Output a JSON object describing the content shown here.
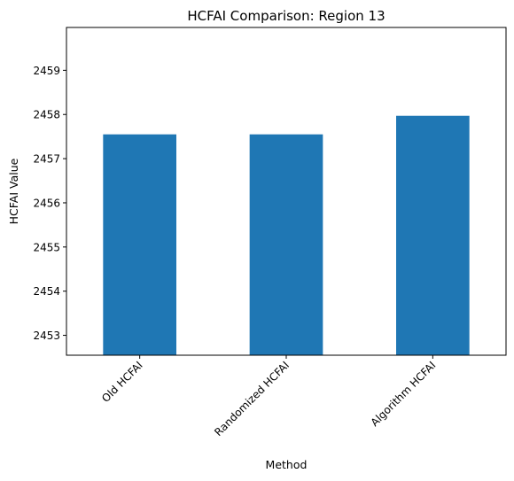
{
  "colors": {
    "bar": "#1f77b4",
    "axis": "#000000",
    "background": "#ffffff"
  },
  "chart_data": {
    "type": "bar",
    "title": "HCFAI Comparison: Region 13",
    "xlabel": "Method",
    "ylabel": "HCFAI Value",
    "categories": [
      "Old HCFAI",
      "Randomized HCFAI",
      "Algorithm HCFAI"
    ],
    "values": [
      2457.55,
      2457.55,
      2457.97
    ],
    "ylim": [
      2452.55,
      2459.97
    ],
    "yticks": [
      2453,
      2454,
      2455,
      2456,
      2457,
      2458,
      2459
    ],
    "x_tick_rotation": 45,
    "grid": false,
    "legend": "none"
  }
}
